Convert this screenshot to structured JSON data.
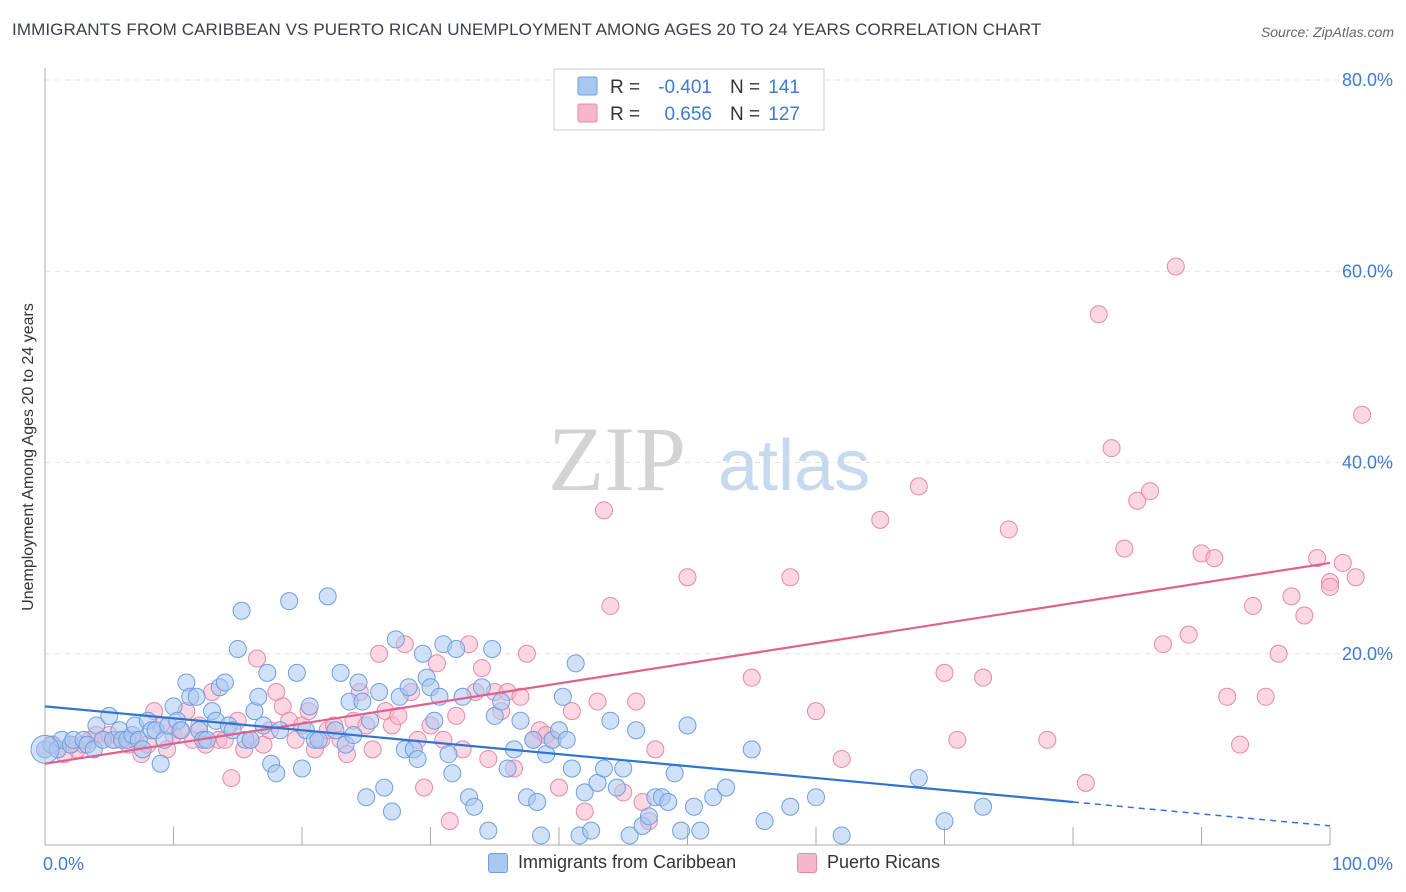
{
  "header": {
    "title": "IMMIGRANTS FROM CARIBBEAN VS PUERTO RICAN UNEMPLOYMENT AMONG AGES 20 TO 24 YEARS CORRELATION CHART",
    "source": "Source: ZipAtlas.com"
  },
  "watermark": {
    "zip": "ZIP",
    "atlas": "atlas"
  },
  "colors": {
    "blue_fill": "#a9c8f0",
    "blue_stroke": "#6d9ee0",
    "blue_line": "#2f74d0",
    "pink_fill": "#f6b6cc",
    "pink_stroke": "#e888a8",
    "pink_line": "#e0608e",
    "axis_text": "#3f7bd0",
    "grid": "#e2e2e2"
  },
  "stats_legend": {
    "rows": [
      {
        "r_label": "R =",
        "r_value": "-0.401",
        "n_label": "N =",
        "n_value": "141"
      },
      {
        "r_label": "R =",
        "r_value": "0.656",
        "n_label": "N =",
        "n_value": "127"
      }
    ]
  },
  "legend": {
    "items": [
      "Immigrants from Caribbean",
      "Puerto Ricans"
    ]
  },
  "chart_data": {
    "type": "scatter",
    "title": "IMMIGRANTS FROM CARIBBEAN VS PUERTO RICAN UNEMPLOYMENT AMONG AGES 20 TO 24 YEARS CORRELATION CHART",
    "xlabel": "",
    "ylabel": "Unemployment Among Ages 20 to 24 years",
    "xlim": [
      0,
      100
    ],
    "ylim": [
      0,
      80
    ],
    "x_tick_labels": [
      "0.0%",
      "100.0%"
    ],
    "y_ticks": [
      20,
      40,
      60,
      80
    ],
    "y_tick_labels": [
      "20.0%",
      "40.0%",
      "60.0%",
      "80.0%"
    ],
    "grid": true,
    "legend_position": "bottom",
    "series": [
      {
        "name": "Immigrants from Caribbean",
        "r": -0.401,
        "n": 141,
        "trend": {
          "x": [
            0,
            80
          ],
          "y": [
            14.5,
            4.5
          ]
        },
        "trend_extension": {
          "x": [
            80,
            100
          ],
          "y": [
            4.5,
            2.0
          ]
        },
        "points": [
          [
            0,
            10
          ],
          [
            0.5,
            10.5
          ],
          [
            1,
            10
          ],
          [
            1.3,
            11
          ],
          [
            2,
            10.5
          ],
          [
            2.2,
            11
          ],
          [
            3,
            11
          ],
          [
            3.3,
            10.5
          ],
          [
            3.8,
            10
          ],
          [
            4,
            12.5
          ],
          [
            4.5,
            11
          ],
          [
            5,
            13.5
          ],
          [
            5.3,
            11
          ],
          [
            5.8,
            12
          ],
          [
            6,
            11
          ],
          [
            6.4,
            11
          ],
          [
            6.8,
            11.5
          ],
          [
            7,
            12.5
          ],
          [
            7.3,
            11
          ],
          [
            7.6,
            10
          ],
          [
            8,
            13
          ],
          [
            8.3,
            12
          ],
          [
            8.6,
            12
          ],
          [
            9,
            8.5
          ],
          [
            9.3,
            11
          ],
          [
            9.6,
            12.5
          ],
          [
            10,
            14.5
          ],
          [
            10.3,
            13
          ],
          [
            10.6,
            12
          ],
          [
            11,
            17
          ],
          [
            11.3,
            15.5
          ],
          [
            11.8,
            15.5
          ],
          [
            12,
            12
          ],
          [
            12.3,
            11
          ],
          [
            12.6,
            11
          ],
          [
            13,
            14
          ],
          [
            13.3,
            13
          ],
          [
            13.6,
            16.5
          ],
          [
            14,
            17
          ],
          [
            14.3,
            12.5
          ],
          [
            14.6,
            12
          ],
          [
            15,
            20.5
          ],
          [
            15.3,
            24.5
          ],
          [
            15.6,
            11
          ],
          [
            16,
            11
          ],
          [
            16.3,
            14
          ],
          [
            16.6,
            15.5
          ],
          [
            17,
            12.5
          ],
          [
            17.3,
            18
          ],
          [
            17.6,
            8.5
          ],
          [
            18,
            7.5
          ],
          [
            18.3,
            12
          ],
          [
            19,
            25.5
          ],
          [
            19.6,
            18
          ],
          [
            20,
            8
          ],
          [
            20.3,
            12
          ],
          [
            20.6,
            14.5
          ],
          [
            21,
            11
          ],
          [
            21.3,
            11
          ],
          [
            22,
            26
          ],
          [
            22.6,
            12
          ],
          [
            23,
            18
          ],
          [
            23.4,
            10.5
          ],
          [
            23.7,
            15
          ],
          [
            24,
            11.5
          ],
          [
            24.4,
            17
          ],
          [
            24.7,
            15
          ],
          [
            25,
            5
          ],
          [
            25.3,
            13
          ],
          [
            26,
            16
          ],
          [
            26.4,
            6
          ],
          [
            27,
            3.5
          ],
          [
            27.3,
            21.5
          ],
          [
            27.6,
            15.5
          ],
          [
            28,
            10
          ],
          [
            28.3,
            16.5
          ],
          [
            28.7,
            10
          ],
          [
            29,
            9
          ],
          [
            29.4,
            20
          ],
          [
            29.7,
            17.5
          ],
          [
            30,
            16.5
          ],
          [
            30.3,
            13
          ],
          [
            30.7,
            15.5
          ],
          [
            31,
            21
          ],
          [
            31.4,
            9.5
          ],
          [
            31.7,
            7.5
          ],
          [
            32,
            20.5
          ],
          [
            32.5,
            15.5
          ],
          [
            33,
            5
          ],
          [
            33.4,
            4
          ],
          [
            34,
            16.5
          ],
          [
            34.5,
            1.5
          ],
          [
            34.8,
            20.5
          ],
          [
            35,
            13.5
          ],
          [
            35.5,
            15
          ],
          [
            36,
            8
          ],
          [
            36.5,
            10
          ],
          [
            37,
            13
          ],
          [
            37.5,
            5
          ],
          [
            38,
            11
          ],
          [
            38.3,
            4.5
          ],
          [
            38.6,
            1
          ],
          [
            39,
            9.5
          ],
          [
            39.5,
            11
          ],
          [
            40,
            12
          ],
          [
            40.3,
            15.5
          ],
          [
            40.6,
            11
          ],
          [
            41,
            8
          ],
          [
            41.3,
            19
          ],
          [
            41.6,
            1
          ],
          [
            42,
            5.5
          ],
          [
            42.5,
            1.5
          ],
          [
            43,
            6.5
          ],
          [
            43.5,
            8
          ],
          [
            44,
            13
          ],
          [
            44.5,
            6
          ],
          [
            45,
            8
          ],
          [
            45.5,
            1
          ],
          [
            46,
            12
          ],
          [
            46.5,
            2
          ],
          [
            47,
            3
          ],
          [
            47.5,
            5
          ],
          [
            48,
            5
          ],
          [
            48.5,
            4.5
          ],
          [
            49,
            7.5
          ],
          [
            49.5,
            1.5
          ],
          [
            50,
            12.5
          ],
          [
            50.5,
            4
          ],
          [
            51,
            1.5
          ],
          [
            52,
            5
          ],
          [
            53,
            6
          ],
          [
            55,
            10
          ],
          [
            56,
            2.5
          ],
          [
            58,
            4
          ],
          [
            60,
            5
          ],
          [
            62,
            1
          ],
          [
            68,
            7
          ],
          [
            70,
            2.5
          ],
          [
            73,
            4
          ]
        ]
      },
      {
        "name": "Puerto Ricans",
        "r": 0.656,
        "n": 127,
        "trend": {
          "x": [
            0,
            100
          ],
          "y": [
            8.5,
            29.5
          ]
        },
        "points": [
          [
            0,
            10
          ],
          [
            0.6,
            10.5
          ],
          [
            1,
            10
          ],
          [
            1.5,
            9.5
          ],
          [
            2,
            10.5
          ],
          [
            2.5,
            10
          ],
          [
            3,
            10.5
          ],
          [
            3.5,
            11
          ],
          [
            4,
            11.5
          ],
          [
            4.5,
            11
          ],
          [
            5,
            11.5
          ],
          [
            5.5,
            11
          ],
          [
            6,
            11
          ],
          [
            6.5,
            10.5
          ],
          [
            7,
            11
          ],
          [
            7.5,
            9.5
          ],
          [
            8,
            10.5
          ],
          [
            8.5,
            14
          ],
          [
            9,
            12.5
          ],
          [
            9.5,
            10
          ],
          [
            10,
            11.5
          ],
          [
            10.5,
            12
          ],
          [
            11,
            14
          ],
          [
            11.5,
            11
          ],
          [
            12,
            12.5
          ],
          [
            12.5,
            10.5
          ],
          [
            13,
            16
          ],
          [
            13.5,
            11
          ],
          [
            14,
            11
          ],
          [
            14.5,
            7
          ],
          [
            15,
            13
          ],
          [
            15.5,
            10
          ],
          [
            16,
            11
          ],
          [
            16.5,
            19.5
          ],
          [
            17,
            10.5
          ],
          [
            17.5,
            12
          ],
          [
            18,
            16
          ],
          [
            18.5,
            14.5
          ],
          [
            19,
            13
          ],
          [
            19.5,
            11
          ],
          [
            20,
            12.5
          ],
          [
            20.5,
            14
          ],
          [
            21,
            10
          ],
          [
            21.5,
            11
          ],
          [
            22,
            12
          ],
          [
            22.5,
            12.5
          ],
          [
            23,
            11
          ],
          [
            23.5,
            9.5
          ],
          [
            24,
            13
          ],
          [
            24.5,
            16
          ],
          [
            25,
            12.5
          ],
          [
            25.5,
            10
          ],
          [
            26,
            20
          ],
          [
            26.5,
            14
          ],
          [
            27,
            12.5
          ],
          [
            27.5,
            13.5
          ],
          [
            28,
            21
          ],
          [
            28.5,
            16
          ],
          [
            29,
            11
          ],
          [
            29.5,
            6
          ],
          [
            30,
            12.5
          ],
          [
            30.5,
            19
          ],
          [
            31,
            11
          ],
          [
            31.5,
            2.5
          ],
          [
            32,
            13.5
          ],
          [
            32.5,
            10
          ],
          [
            33,
            21
          ],
          [
            33.5,
            16
          ],
          [
            34,
            18.5
          ],
          [
            34.5,
            9
          ],
          [
            35,
            16
          ],
          [
            35.5,
            14
          ],
          [
            36,
            16
          ],
          [
            36.5,
            8
          ],
          [
            37,
            15.5
          ],
          [
            37.5,
            20
          ],
          [
            38,
            11
          ],
          [
            38.5,
            12
          ],
          [
            39,
            11.5
          ],
          [
            39.5,
            11
          ],
          [
            40,
            6
          ],
          [
            41,
            14
          ],
          [
            42,
            3.5
          ],
          [
            43,
            15
          ],
          [
            43.5,
            35
          ],
          [
            44,
            25
          ],
          [
            45,
            5.5
          ],
          [
            46,
            15
          ],
          [
            46.5,
            4.5
          ],
          [
            47,
            2.5
          ],
          [
            47.5,
            10
          ],
          [
            50,
            28
          ],
          [
            55,
            17.5
          ],
          [
            58,
            28
          ],
          [
            60,
            14
          ],
          [
            62,
            9
          ],
          [
            65,
            34
          ],
          [
            68,
            37.5
          ],
          [
            70,
            18
          ],
          [
            71,
            11
          ],
          [
            73,
            17.5
          ],
          [
            75,
            33
          ],
          [
            78,
            11
          ],
          [
            81,
            6.5
          ],
          [
            82,
            55.5
          ],
          [
            83,
            41.5
          ],
          [
            84,
            31
          ],
          [
            85,
            36
          ],
          [
            86,
            37
          ],
          [
            87,
            21
          ],
          [
            88,
            60.5
          ],
          [
            89,
            22
          ],
          [
            90,
            30.5
          ],
          [
            91,
            30
          ],
          [
            92,
            15.5
          ],
          [
            93,
            10.5
          ],
          [
            94,
            25
          ],
          [
            95,
            15.5
          ],
          [
            96,
            20
          ],
          [
            97,
            26
          ],
          [
            98,
            24
          ],
          [
            99,
            30
          ],
          [
            100,
            27.5
          ],
          [
            100,
            27
          ],
          [
            101,
            29.5
          ],
          [
            102,
            28
          ],
          [
            102.5,
            45
          ]
        ]
      }
    ]
  }
}
